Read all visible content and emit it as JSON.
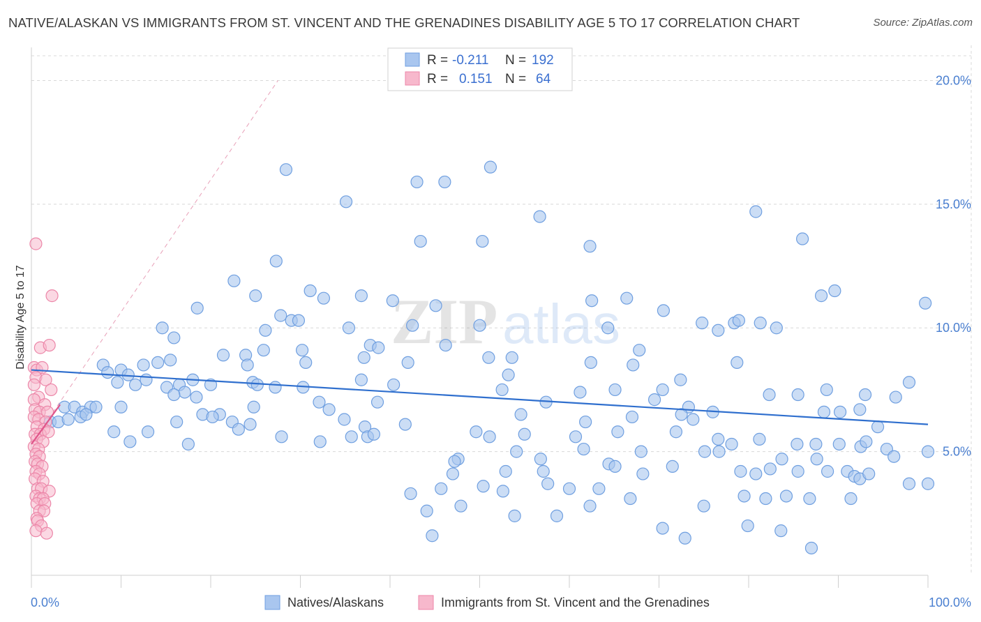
{
  "title": "NATIVE/ALASKAN VS IMMIGRANTS FROM ST. VINCENT AND THE GRENADINES DISABILITY AGE 5 TO 17 CORRELATION CHART",
  "source": "Source: ZipAtlas.com",
  "watermark": {
    "zip": "ZIP",
    "atlas": "atlas"
  },
  "colors": {
    "blue_fill": "#a9c6ef",
    "blue_stroke": "#6f9fe0",
    "blue_line": "#2f6fce",
    "pink_fill": "#f7b8cc",
    "pink_stroke": "#ec86a8",
    "pink_line": "#e0558a",
    "grid": "#d8d8d8",
    "tick_text": "#4a7fd0"
  },
  "chart_data": {
    "type": "scatter",
    "title": "NATIVE/ALASKAN VS IMMIGRANTS FROM ST. VINCENT AND THE GRENADINES DISABILITY AGE 5 TO 17 CORRELATION CHART",
    "xlabel": "",
    "ylabel": "Disability Age 5 to 17",
    "xlim": [
      0,
      100
    ],
    "ylim": [
      0,
      21
    ],
    "x_tick_labels": [
      "0.0%",
      "100.0%"
    ],
    "y_ticks": [
      5,
      10,
      15,
      20
    ],
    "y_tick_labels": [
      "5.0%",
      "10.0%",
      "15.0%",
      "20.0%"
    ],
    "legend": [
      {
        "r_label": "R =",
        "r_value": "-0.211",
        "n_label": "N =",
        "n_value": "192"
      },
      {
        "r_label": "R =",
        "r_value": "0.151",
        "n_label": "N =",
        "n_value": "64"
      }
    ],
    "series": [
      {
        "name": "Natives/Alaskans",
        "trend": [
          [
            0,
            8.3
          ],
          [
            100,
            6.1
          ]
        ],
        "points": [
          [
            28.4,
            16.4
          ],
          [
            51.2,
            16.5
          ],
          [
            43.0,
            15.9
          ],
          [
            46.1,
            15.9
          ],
          [
            35.1,
            15.1
          ],
          [
            56.7,
            14.5
          ],
          [
            80.8,
            14.7
          ],
          [
            43.4,
            13.5
          ],
          [
            50.3,
            13.5
          ],
          [
            62.3,
            13.3
          ],
          [
            86.0,
            13.6
          ],
          [
            27.3,
            12.7
          ],
          [
            22.6,
            11.9
          ],
          [
            31.1,
            11.5
          ],
          [
            25.0,
            11.3
          ],
          [
            32.6,
            11.2
          ],
          [
            36.8,
            11.3
          ],
          [
            40.3,
            11.1
          ],
          [
            62.5,
            11.1
          ],
          [
            66.4,
            11.2
          ],
          [
            88.1,
            11.3
          ],
          [
            89.6,
            11.5
          ],
          [
            99.7,
            11.0
          ],
          [
            18.5,
            10.8
          ],
          [
            27.8,
            10.5
          ],
          [
            29.0,
            10.3
          ],
          [
            29.8,
            10.3
          ],
          [
            45.1,
            10.9
          ],
          [
            70.5,
            10.7
          ],
          [
            14.6,
            10.0
          ],
          [
            26.1,
            9.9
          ],
          [
            35.4,
            10.0
          ],
          [
            42.5,
            10.1
          ],
          [
            50.0,
            10.1
          ],
          [
            64.3,
            10.0
          ],
          [
            74.8,
            10.2
          ],
          [
            76.6,
            9.9
          ],
          [
            78.4,
            10.2
          ],
          [
            78.9,
            10.3
          ],
          [
            81.3,
            10.2
          ],
          [
            83.1,
            10.0
          ],
          [
            15.9,
            9.6
          ],
          [
            21.4,
            8.9
          ],
          [
            23.9,
            8.9
          ],
          [
            25.9,
            9.1
          ],
          [
            30.2,
            9.1
          ],
          [
            37.8,
            9.3
          ],
          [
            38.7,
            9.2
          ],
          [
            46.2,
            9.3
          ],
          [
            67.8,
            9.1
          ],
          [
            12.5,
            8.5
          ],
          [
            14.1,
            8.6
          ],
          [
            15.5,
            8.7
          ],
          [
            24.1,
            8.5
          ],
          [
            30.6,
            8.6
          ],
          [
            37.1,
            8.8
          ],
          [
            42.0,
            8.6
          ],
          [
            51.0,
            8.8
          ],
          [
            53.6,
            8.8
          ],
          [
            62.4,
            8.6
          ],
          [
            67.1,
            8.5
          ],
          [
            78.7,
            8.6
          ],
          [
            8.0,
            8.5
          ],
          [
            8.5,
            8.2
          ],
          [
            10.0,
            8.3
          ],
          [
            10.8,
            8.1
          ],
          [
            11.6,
            7.7
          ],
          [
            12.8,
            7.9
          ],
          [
            9.6,
            7.8
          ],
          [
            15.1,
            7.6
          ],
          [
            16.5,
            7.7
          ],
          [
            17.1,
            7.4
          ],
          [
            18.4,
            7.2
          ],
          [
            18.0,
            7.9
          ],
          [
            20.0,
            7.7
          ],
          [
            24.7,
            7.8
          ],
          [
            25.2,
            7.7
          ],
          [
            27.2,
            7.6
          ],
          [
            30.3,
            7.6
          ],
          [
            36.8,
            7.9
          ],
          [
            40.4,
            7.7
          ],
          [
            52.5,
            7.5
          ],
          [
            53.2,
            8.1
          ],
          [
            57.4,
            7.0
          ],
          [
            61.2,
            7.4
          ],
          [
            65.1,
            7.5
          ],
          [
            69.5,
            7.1
          ],
          [
            70.4,
            7.5
          ],
          [
            72.4,
            7.9
          ],
          [
            73.3,
            6.8
          ],
          [
            76.0,
            6.6
          ],
          [
            82.3,
            7.3
          ],
          [
            85.5,
            7.3
          ],
          [
            88.7,
            7.5
          ],
          [
            90.2,
            6.6
          ],
          [
            93.0,
            7.3
          ],
          [
            96.4,
            7.2
          ],
          [
            97.9,
            7.8
          ],
          [
            15.9,
            7.3
          ],
          [
            19.1,
            6.5
          ],
          [
            21.0,
            6.5
          ],
          [
            24.8,
            6.8
          ],
          [
            32.1,
            7.0
          ],
          [
            33.2,
            6.7
          ],
          [
            38.6,
            7.0
          ],
          [
            3.7,
            6.8
          ],
          [
            4.8,
            6.8
          ],
          [
            5.7,
            6.6
          ],
          [
            6.6,
            6.8
          ],
          [
            7.2,
            6.8
          ],
          [
            10.0,
            6.8
          ],
          [
            2.1,
            6.2
          ],
          [
            3.0,
            6.2
          ],
          [
            4.1,
            6.3
          ],
          [
            5.5,
            6.4
          ],
          [
            6.1,
            6.5
          ],
          [
            16.2,
            6.2
          ],
          [
            20.2,
            6.4
          ],
          [
            22.4,
            6.2
          ],
          [
            24.4,
            6.1
          ],
          [
            34.9,
            6.3
          ],
          [
            37.2,
            6.0
          ],
          [
            41.7,
            6.1
          ],
          [
            54.6,
            6.5
          ],
          [
            61.8,
            6.2
          ],
          [
            67.0,
            6.4
          ],
          [
            72.5,
            6.5
          ],
          [
            73.8,
            6.3
          ],
          [
            88.4,
            6.6
          ],
          [
            92.4,
            6.7
          ],
          [
            94.4,
            6.0
          ],
          [
            9.2,
            5.8
          ],
          [
            13.0,
            5.8
          ],
          [
            23.1,
            5.9
          ],
          [
            27.9,
            5.6
          ],
          [
            35.7,
            5.6
          ],
          [
            37.5,
            5.6
          ],
          [
            38.2,
            5.7
          ],
          [
            49.6,
            5.8
          ],
          [
            51.1,
            5.6
          ],
          [
            55.0,
            5.7
          ],
          [
            60.7,
            5.6
          ],
          [
            61.6,
            5.1
          ],
          [
            65.4,
            5.8
          ],
          [
            71.9,
            5.8
          ],
          [
            76.6,
            5.5
          ],
          [
            78.1,
            5.3
          ],
          [
            81.2,
            5.5
          ],
          [
            85.4,
            5.3
          ],
          [
            87.5,
            5.3
          ],
          [
            90.1,
            5.3
          ],
          [
            92.5,
            5.2
          ],
          [
            93.1,
            5.4
          ],
          [
            95.4,
            5.1
          ],
          [
            11.0,
            5.4
          ],
          [
            17.5,
            5.3
          ],
          [
            32.2,
            5.4
          ],
          [
            54.1,
            5.0
          ],
          [
            56.8,
            4.7
          ],
          [
            64.4,
            4.5
          ],
          [
            68.0,
            5.0
          ],
          [
            75.1,
            5.0
          ],
          [
            76.7,
            5.0
          ],
          [
            83.7,
            4.7
          ],
          [
            87.6,
            4.7
          ],
          [
            96.2,
            4.8
          ],
          [
            100.0,
            5.0
          ],
          [
            47.6,
            4.7
          ],
          [
            47.2,
            4.6
          ],
          [
            47.0,
            4.1
          ],
          [
            52.9,
            4.2
          ],
          [
            57.1,
            4.2
          ],
          [
            65.1,
            4.4
          ],
          [
            68.2,
            4.1
          ],
          [
            71.5,
            4.4
          ],
          [
            79.1,
            4.2
          ],
          [
            80.8,
            4.1
          ],
          [
            82.4,
            4.3
          ],
          [
            85.5,
            4.2
          ],
          [
            88.8,
            4.2
          ],
          [
            91.0,
            4.2
          ],
          [
            91.8,
            4.0
          ],
          [
            92.4,
            3.9
          ],
          [
            93.4,
            4.1
          ],
          [
            97.9,
            3.7
          ],
          [
            100.0,
            3.7
          ],
          [
            42.3,
            3.3
          ],
          [
            45.7,
            3.5
          ],
          [
            50.4,
            3.6
          ],
          [
            52.6,
            3.4
          ],
          [
            57.6,
            3.7
          ],
          [
            60.0,
            3.5
          ],
          [
            63.3,
            3.5
          ],
          [
            66.8,
            3.1
          ],
          [
            75.0,
            2.8
          ],
          [
            79.5,
            3.2
          ],
          [
            81.9,
            3.1
          ],
          [
            84.2,
            3.2
          ],
          [
            86.8,
            3.1
          ],
          [
            91.4,
            3.1
          ],
          [
            44.1,
            2.6
          ],
          [
            47.9,
            2.8
          ],
          [
            53.9,
            2.4
          ],
          [
            58.6,
            2.4
          ],
          [
            62.3,
            2.8
          ],
          [
            70.4,
            1.9
          ],
          [
            79.9,
            2.0
          ],
          [
            83.6,
            1.8
          ],
          [
            44.7,
            1.6
          ],
          [
            72.9,
            1.5
          ],
          [
            87.0,
            1.1
          ]
        ]
      },
      {
        "name": "Immigrants from St. Vincent and the Grenadines",
        "trend": [
          [
            0,
            5.3
          ],
          [
            3.2,
            6.9
          ]
        ],
        "trend_ext": [
          [
            0,
            5.3
          ],
          [
            27.5,
            20.0
          ]
        ],
        "points": [
          [
            0.5,
            13.4
          ],
          [
            2.3,
            11.3
          ],
          [
            1.0,
            9.2
          ],
          [
            2.0,
            9.3
          ],
          [
            0.3,
            8.4
          ],
          [
            0.6,
            8.3
          ],
          [
            1.2,
            8.4
          ],
          [
            0.5,
            8.0
          ],
          [
            1.6,
            7.9
          ],
          [
            2.2,
            7.5
          ],
          [
            0.3,
            7.7
          ],
          [
            0.8,
            7.2
          ],
          [
            0.3,
            7.1
          ],
          [
            1.5,
            6.9
          ],
          [
            0.4,
            6.7
          ],
          [
            0.9,
            6.6
          ],
          [
            1.8,
            6.6
          ],
          [
            0.3,
            6.4
          ],
          [
            0.8,
            6.3
          ],
          [
            1.6,
            6.2
          ],
          [
            0.6,
            6.0
          ],
          [
            1.4,
            5.9
          ],
          [
            0.4,
            5.7
          ],
          [
            1.0,
            5.7
          ],
          [
            1.9,
            5.8
          ],
          [
            0.6,
            5.5
          ],
          [
            1.3,
            5.4
          ],
          [
            0.3,
            5.2
          ],
          [
            0.8,
            5.1
          ],
          [
            0.5,
            4.9
          ],
          [
            0.9,
            4.8
          ],
          [
            0.4,
            4.6
          ],
          [
            0.7,
            4.5
          ],
          [
            1.2,
            4.4
          ],
          [
            0.5,
            4.2
          ],
          [
            0.9,
            4.1
          ],
          [
            0.4,
            3.9
          ],
          [
            1.3,
            3.8
          ],
          [
            0.7,
            3.5
          ],
          [
            1.1,
            3.5
          ],
          [
            2.0,
            3.4
          ],
          [
            0.5,
            3.2
          ],
          [
            0.9,
            3.1
          ],
          [
            1.3,
            3.1
          ],
          [
            0.6,
            2.9
          ],
          [
            1.5,
            2.9
          ],
          [
            0.9,
            2.6
          ],
          [
            1.4,
            2.6
          ],
          [
            0.6,
            2.3
          ],
          [
            0.7,
            2.2
          ],
          [
            1.1,
            2.0
          ],
          [
            0.5,
            1.8
          ],
          [
            1.7,
            1.7
          ]
        ]
      }
    ]
  }
}
